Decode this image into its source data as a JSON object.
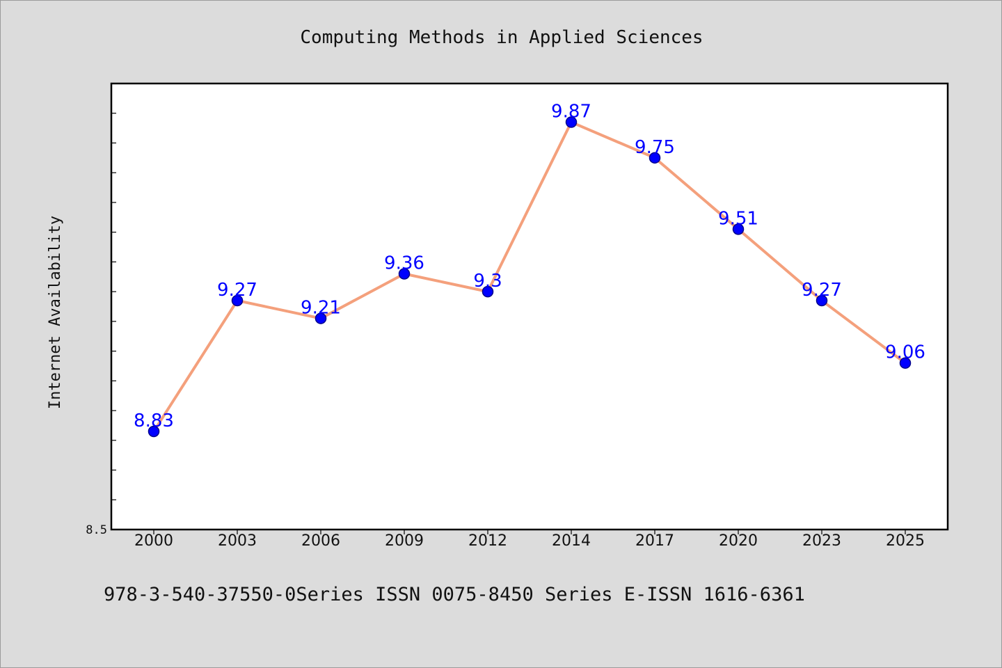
{
  "chart_data": {
    "type": "line",
    "title": "Computing Methods in Applied Sciences",
    "xlabel": "",
    "ylabel": "Internet Availability",
    "categories": [
      "2000",
      "2003",
      "2006",
      "2009",
      "2012",
      "2014",
      "2017",
      "2020",
      "2023",
      "2025"
    ],
    "series": [
      {
        "values": [
          8.83,
          9.27,
          9.21,
          9.36,
          9.3,
          9.87,
          9.75,
          9.51,
          9.27,
          9.06
        ]
      }
    ],
    "ylim": [
      8.5,
      10.0
    ],
    "ytick_labels": [
      "8.5"
    ],
    "grid": false,
    "legend": "none"
  },
  "footer": {
    "text": "978-3-540-37550-0Series ISSN 0075-8450 Series E-ISSN 1616-6361"
  },
  "colors": {
    "line": "#f4a07c",
    "marker": "#0000ff",
    "marker_edge": "#00008b",
    "data_label": "#0000ff",
    "background": "#dcdcdc",
    "plot_background": "#ffffff",
    "axis": "#000000"
  }
}
